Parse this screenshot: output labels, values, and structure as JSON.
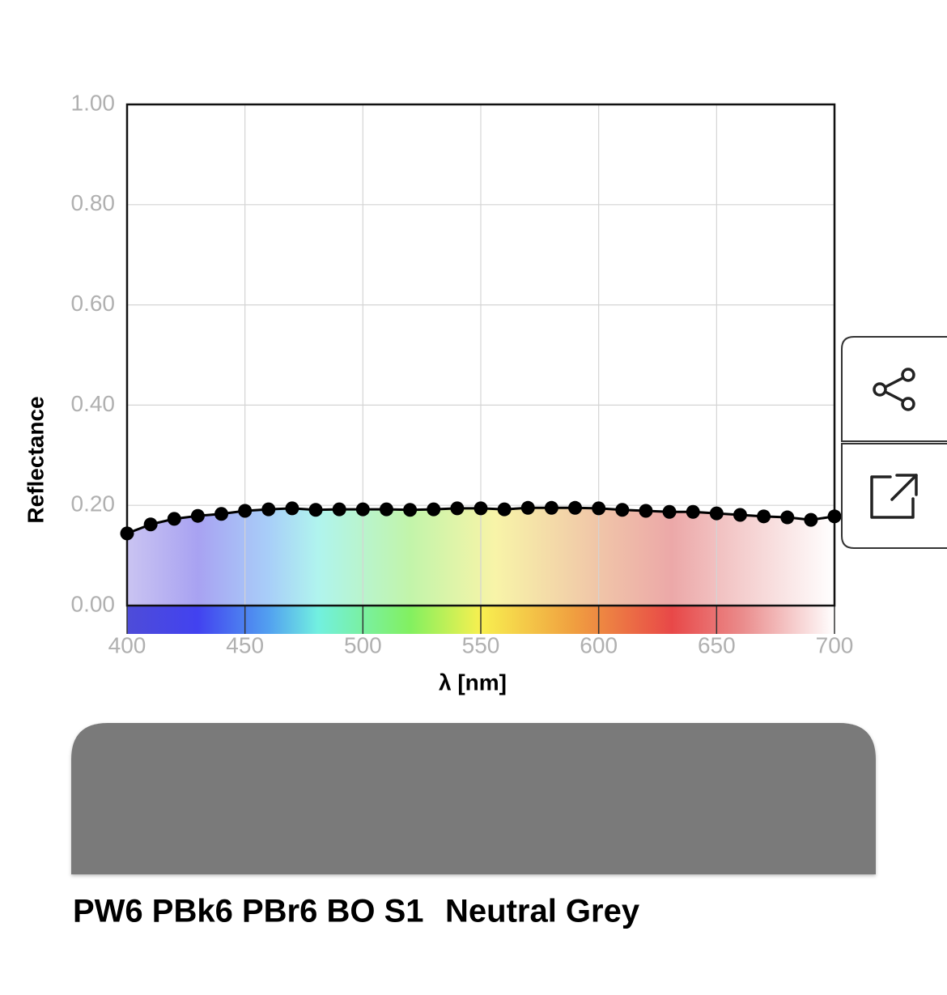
{
  "chart_data": {
    "type": "line",
    "x_label": "λ [nm]",
    "y_label": "Reflectance",
    "x": [
      400,
      410,
      420,
      430,
      440,
      450,
      460,
      470,
      480,
      490,
      500,
      510,
      520,
      530,
      540,
      550,
      560,
      570,
      580,
      590,
      600,
      610,
      620,
      630,
      640,
      650,
      660,
      670,
      680,
      690,
      700
    ],
    "series": [
      {
        "color": "#000000",
        "values": [
          0.144,
          0.162,
          0.173,
          0.179,
          0.183,
          0.189,
          0.192,
          0.194,
          0.191,
          0.192,
          0.192,
          0.192,
          0.191,
          0.192,
          0.194,
          0.194,
          0.192,
          0.195,
          0.195,
          0.195,
          0.194,
          0.191,
          0.189,
          0.187,
          0.187,
          0.184,
          0.181,
          0.178,
          0.176,
          0.171,
          0.178
        ]
      }
    ],
    "xlim": [
      400,
      700
    ],
    "ylim": [
      0,
      1
    ],
    "xticks": [
      400,
      450,
      500,
      550,
      600,
      650,
      700
    ],
    "yticks": [
      {
        "value": 0,
        "label": "0.00"
      },
      {
        "value": 0.2,
        "label": "0.20"
      },
      {
        "value": 0.4,
        "label": "0.40"
      },
      {
        "value": 0.6,
        "label": "0.60"
      },
      {
        "value": 0.8,
        "label": "0.80"
      },
      {
        "value": 1,
        "label": "1.00"
      }
    ],
    "grid": true
  },
  "swatch": {
    "color": "#7a7a7a"
  },
  "pigment": {
    "code": "PW6 PBk6 PBr6 BO S1",
    "name": "Neutral Grey"
  }
}
